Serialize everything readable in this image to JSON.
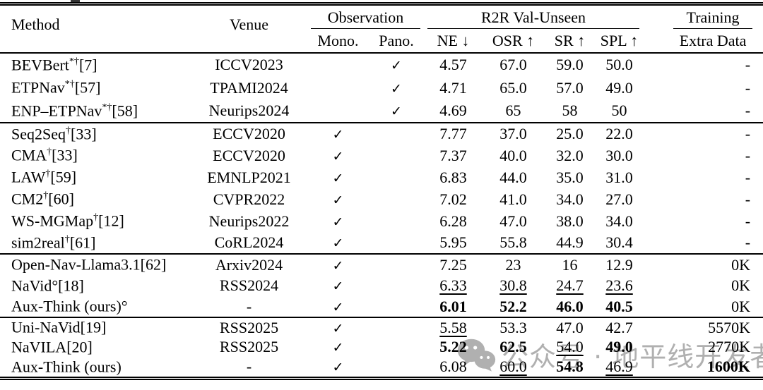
{
  "checkmark": "✓",
  "header": {
    "method": "Method",
    "venue": "Venue",
    "groups": [
      {
        "label": "Observation",
        "subcols": [
          "Mono.",
          "Pano."
        ]
      },
      {
        "label": "R2R Val-Unseen",
        "subcols": [
          "NE ↓",
          "OSR ↑",
          "SR ↑",
          "SPL ↑"
        ]
      },
      {
        "label": "Training",
        "subcols": [
          "Extra Data"
        ]
      }
    ]
  },
  "sections": [
    {
      "rows": [
        {
          "name": "BEVBert",
          "sup": "*†",
          "ref": "[7]",
          "venue": "ICCV2023",
          "mono": false,
          "pano": true,
          "vals": [
            [
              "4.57",
              ""
            ],
            [
              "67.0",
              ""
            ],
            [
              "59.0",
              ""
            ],
            [
              "50.0",
              ""
            ]
          ],
          "extra": [
            "-",
            ""
          ]
        },
        {
          "name": "ETPNav",
          "sup": "*†",
          "ref": "[57]",
          "venue": "TPAMI2024",
          "mono": false,
          "pano": true,
          "vals": [
            [
              "4.71",
              ""
            ],
            [
              "65.0",
              ""
            ],
            [
              "57.0",
              ""
            ],
            [
              "49.0",
              ""
            ]
          ],
          "extra": [
            "-",
            ""
          ]
        },
        {
          "name": "ENP–ETPNav",
          "sup": "*†",
          "ref": "[58]",
          "venue": "Neurips2024",
          "mono": false,
          "pano": true,
          "vals": [
            [
              "4.69",
              ""
            ],
            [
              "65",
              ""
            ],
            [
              "58",
              ""
            ],
            [
              "50",
              ""
            ]
          ],
          "extra": [
            "-",
            ""
          ]
        }
      ]
    },
    {
      "rows": [
        {
          "name": "Seq2Seq",
          "sup": "†",
          "ref": "[33]",
          "venue": "ECCV2020",
          "mono": true,
          "pano": false,
          "vals": [
            [
              "7.77",
              ""
            ],
            [
              "37.0",
              ""
            ],
            [
              "25.0",
              ""
            ],
            [
              "22.0",
              ""
            ]
          ],
          "extra": [
            "-",
            ""
          ]
        },
        {
          "name": "CMA",
          "sup": "†",
          "ref": "[33]",
          "venue": "ECCV2020",
          "mono": true,
          "pano": false,
          "vals": [
            [
              "7.37",
              ""
            ],
            [
              "40.0",
              ""
            ],
            [
              "32.0",
              ""
            ],
            [
              "30.0",
              ""
            ]
          ],
          "extra": [
            "-",
            ""
          ]
        },
        {
          "name": "LAW",
          "sup": "†",
          "ref": "[59]",
          "venue": "EMNLP2021",
          "mono": true,
          "pano": false,
          "vals": [
            [
              "6.83",
              ""
            ],
            [
              "44.0",
              ""
            ],
            [
              "35.0",
              ""
            ],
            [
              "31.0",
              ""
            ]
          ],
          "extra": [
            "-",
            ""
          ]
        },
        {
          "name": "CM2",
          "sup": "†",
          "ref": "[60]",
          "venue": "CVPR2022",
          "mono": true,
          "pano": false,
          "vals": [
            [
              "7.02",
              ""
            ],
            [
              "41.0",
              ""
            ],
            [
              "34.0",
              ""
            ],
            [
              "27.0",
              ""
            ]
          ],
          "extra": [
            "-",
            ""
          ]
        },
        {
          "name": "WS-MGMap",
          "sup": "†",
          "ref": "[12]",
          "venue": "Neurips2022",
          "mono": true,
          "pano": false,
          "vals": [
            [
              "6.28",
              ""
            ],
            [
              "47.0",
              ""
            ],
            [
              "38.0",
              ""
            ],
            [
              "34.0",
              ""
            ]
          ],
          "extra": [
            "-",
            ""
          ]
        },
        {
          "name": "sim2real",
          "sup": "†",
          "ref": "[61]",
          "venue": "CoRL2024",
          "mono": true,
          "pano": false,
          "vals": [
            [
              "5.95",
              ""
            ],
            [
              "55.8",
              ""
            ],
            [
              "44.9",
              ""
            ],
            [
              "30.4",
              ""
            ]
          ],
          "extra": [
            "-",
            ""
          ]
        }
      ]
    },
    {
      "rows": [
        {
          "name": "Open-Nav-Llama3.1",
          "sup": "",
          "ref": "[62]",
          "venue": "Arxiv2024",
          "mono": true,
          "pano": false,
          "vals": [
            [
              "7.25",
              ""
            ],
            [
              "23",
              ""
            ],
            [
              "16",
              ""
            ],
            [
              "12.9",
              ""
            ]
          ],
          "extra": [
            "0K",
            ""
          ]
        },
        {
          "name": "NaVid°",
          "sup": "",
          "ref": "[18]",
          "venue": "RSS2024",
          "mono": true,
          "pano": false,
          "vals": [
            [
              "6.33",
              "u"
            ],
            [
              "30.8",
              "u"
            ],
            [
              "24.7",
              "u"
            ],
            [
              "23.6",
              "u"
            ]
          ],
          "extra": [
            "0K",
            ""
          ]
        },
        {
          "name": "Aux-Think (ours)°",
          "sup": "",
          "ref": "",
          "venue": "-",
          "mono": true,
          "pano": false,
          "vals": [
            [
              "6.01",
              "b"
            ],
            [
              "52.2",
              "b"
            ],
            [
              "46.0",
              "b"
            ],
            [
              "40.5",
              "b"
            ]
          ],
          "extra": [
            "0K",
            ""
          ]
        }
      ]
    },
    {
      "rows": [
        {
          "name": "Uni-NaVid",
          "sup": "",
          "ref": "[19]",
          "venue": "RSS2025",
          "mono": true,
          "pano": false,
          "vals": [
            [
              "5.58",
              "u"
            ],
            [
              "53.3",
              ""
            ],
            [
              "47.0",
              ""
            ],
            [
              "42.7",
              ""
            ]
          ],
          "extra": [
            "5570K",
            ""
          ]
        },
        {
          "name": "NaVILA",
          "sup": "",
          "ref": "[20]",
          "venue": "RSS2025",
          "mono": true,
          "pano": false,
          "vals": [
            [
              "5.22",
              "b"
            ],
            [
              "62.5",
              "b"
            ],
            [
              "54.0",
              "u"
            ],
            [
              "49.0",
              "b"
            ]
          ],
          "extra": [
            "2770K",
            ""
          ]
        },
        {
          "name": "Aux-Think (ours)",
          "sup": "",
          "ref": "",
          "venue": "-",
          "mono": true,
          "pano": false,
          "vals": [
            [
              "6.08",
              ""
            ],
            [
              "60.0",
              "u"
            ],
            [
              "54.8",
              "b"
            ],
            [
              "46.9",
              "u"
            ]
          ],
          "extra": [
            "1600K",
            "b"
          ]
        }
      ]
    }
  ],
  "watermark": {
    "icon": "wechat-icon",
    "text": "公众号 · 地平线开发者",
    "color": "#b0b0b0"
  }
}
